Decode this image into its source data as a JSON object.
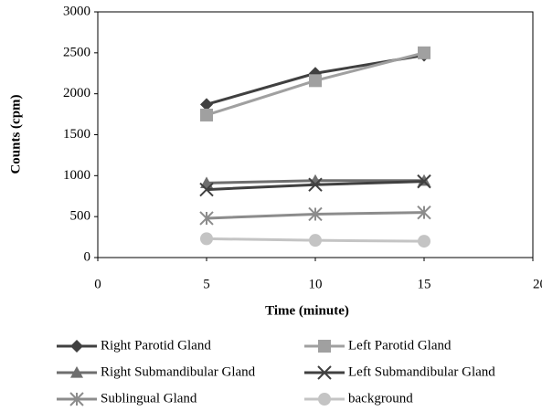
{
  "chart_data": {
    "type": "line",
    "xlabel": "Time (minute)",
    "ylabel": "Counts (cpm)",
    "x": [
      5,
      10,
      15
    ],
    "xlim": [
      0,
      20
    ],
    "xticks": [
      0,
      5,
      10,
      15,
      20
    ],
    "ylim": [
      0,
      3000
    ],
    "yticks": [
      0,
      500,
      1000,
      1500,
      2000,
      2500,
      3000
    ],
    "legend": "bottom",
    "series": [
      {
        "name": "Right Parotid Gland",
        "color": "#404040",
        "marker": "diamond",
        "values": [
          1870,
          2250,
          2470
        ]
      },
      {
        "name": "Left Parotid Gland",
        "color": "#a0a0a0",
        "marker": "square",
        "values": [
          1740,
          2160,
          2500
        ]
      },
      {
        "name": "Right Submandibular Gland",
        "color": "#6e6e6e",
        "marker": "triangle",
        "values": [
          910,
          940,
          940
        ]
      },
      {
        "name": "Left Submandibular Gland",
        "color": "#404040",
        "marker": "x",
        "values": [
          830,
          890,
          930
        ]
      },
      {
        "name": "Sublingual Gland",
        "color": "#8c8c8c",
        "marker": "star",
        "values": [
          480,
          530,
          550
        ]
      },
      {
        "name": "background",
        "color": "#c4c4c4",
        "marker": "circle",
        "values": [
          230,
          210,
          200
        ]
      }
    ]
  }
}
